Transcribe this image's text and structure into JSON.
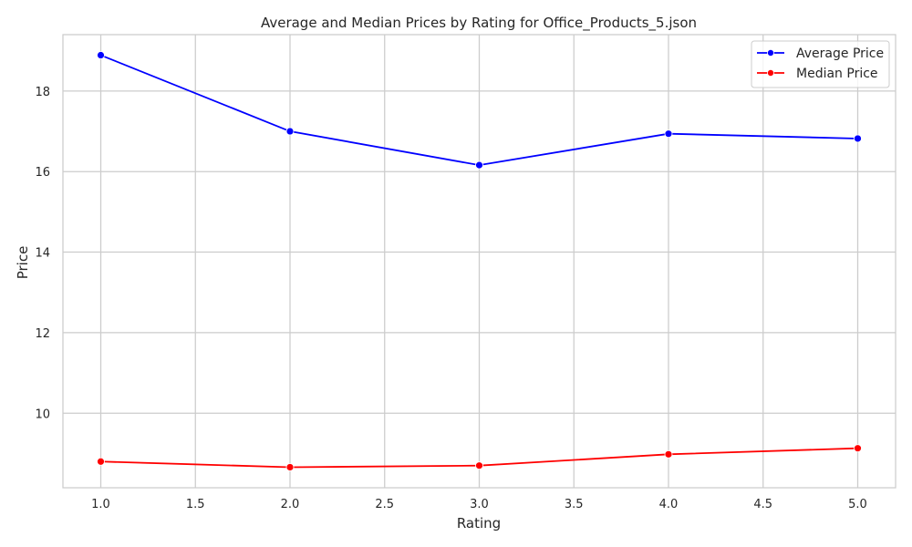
{
  "chart_data": {
    "type": "line",
    "title": "Average and Median Prices by Rating for Office_Products_5.json",
    "xlabel": "Rating",
    "ylabel": "Price",
    "xlim": [
      0.8,
      5.2
    ],
    "ylim": [
      8.15,
      19.4
    ],
    "xticks": [
      "1.0",
      "1.5",
      "2.0",
      "2.5",
      "3.0",
      "3.5",
      "4.0",
      "4.5",
      "5.0"
    ],
    "yticks": [
      "10",
      "12",
      "14",
      "16",
      "18"
    ],
    "grid": true,
    "legend_position": "top-right",
    "x": [
      1.0,
      2.0,
      3.0,
      4.0,
      5.0
    ],
    "series": [
      {
        "name": "Average Price",
        "color": "#0000ff",
        "values": [
          18.89,
          17.0,
          16.16,
          16.94,
          16.82
        ]
      },
      {
        "name": "Median Price",
        "color": "#ff0000",
        "values": [
          8.8,
          8.66,
          8.7,
          8.98,
          9.13
        ]
      }
    ]
  }
}
